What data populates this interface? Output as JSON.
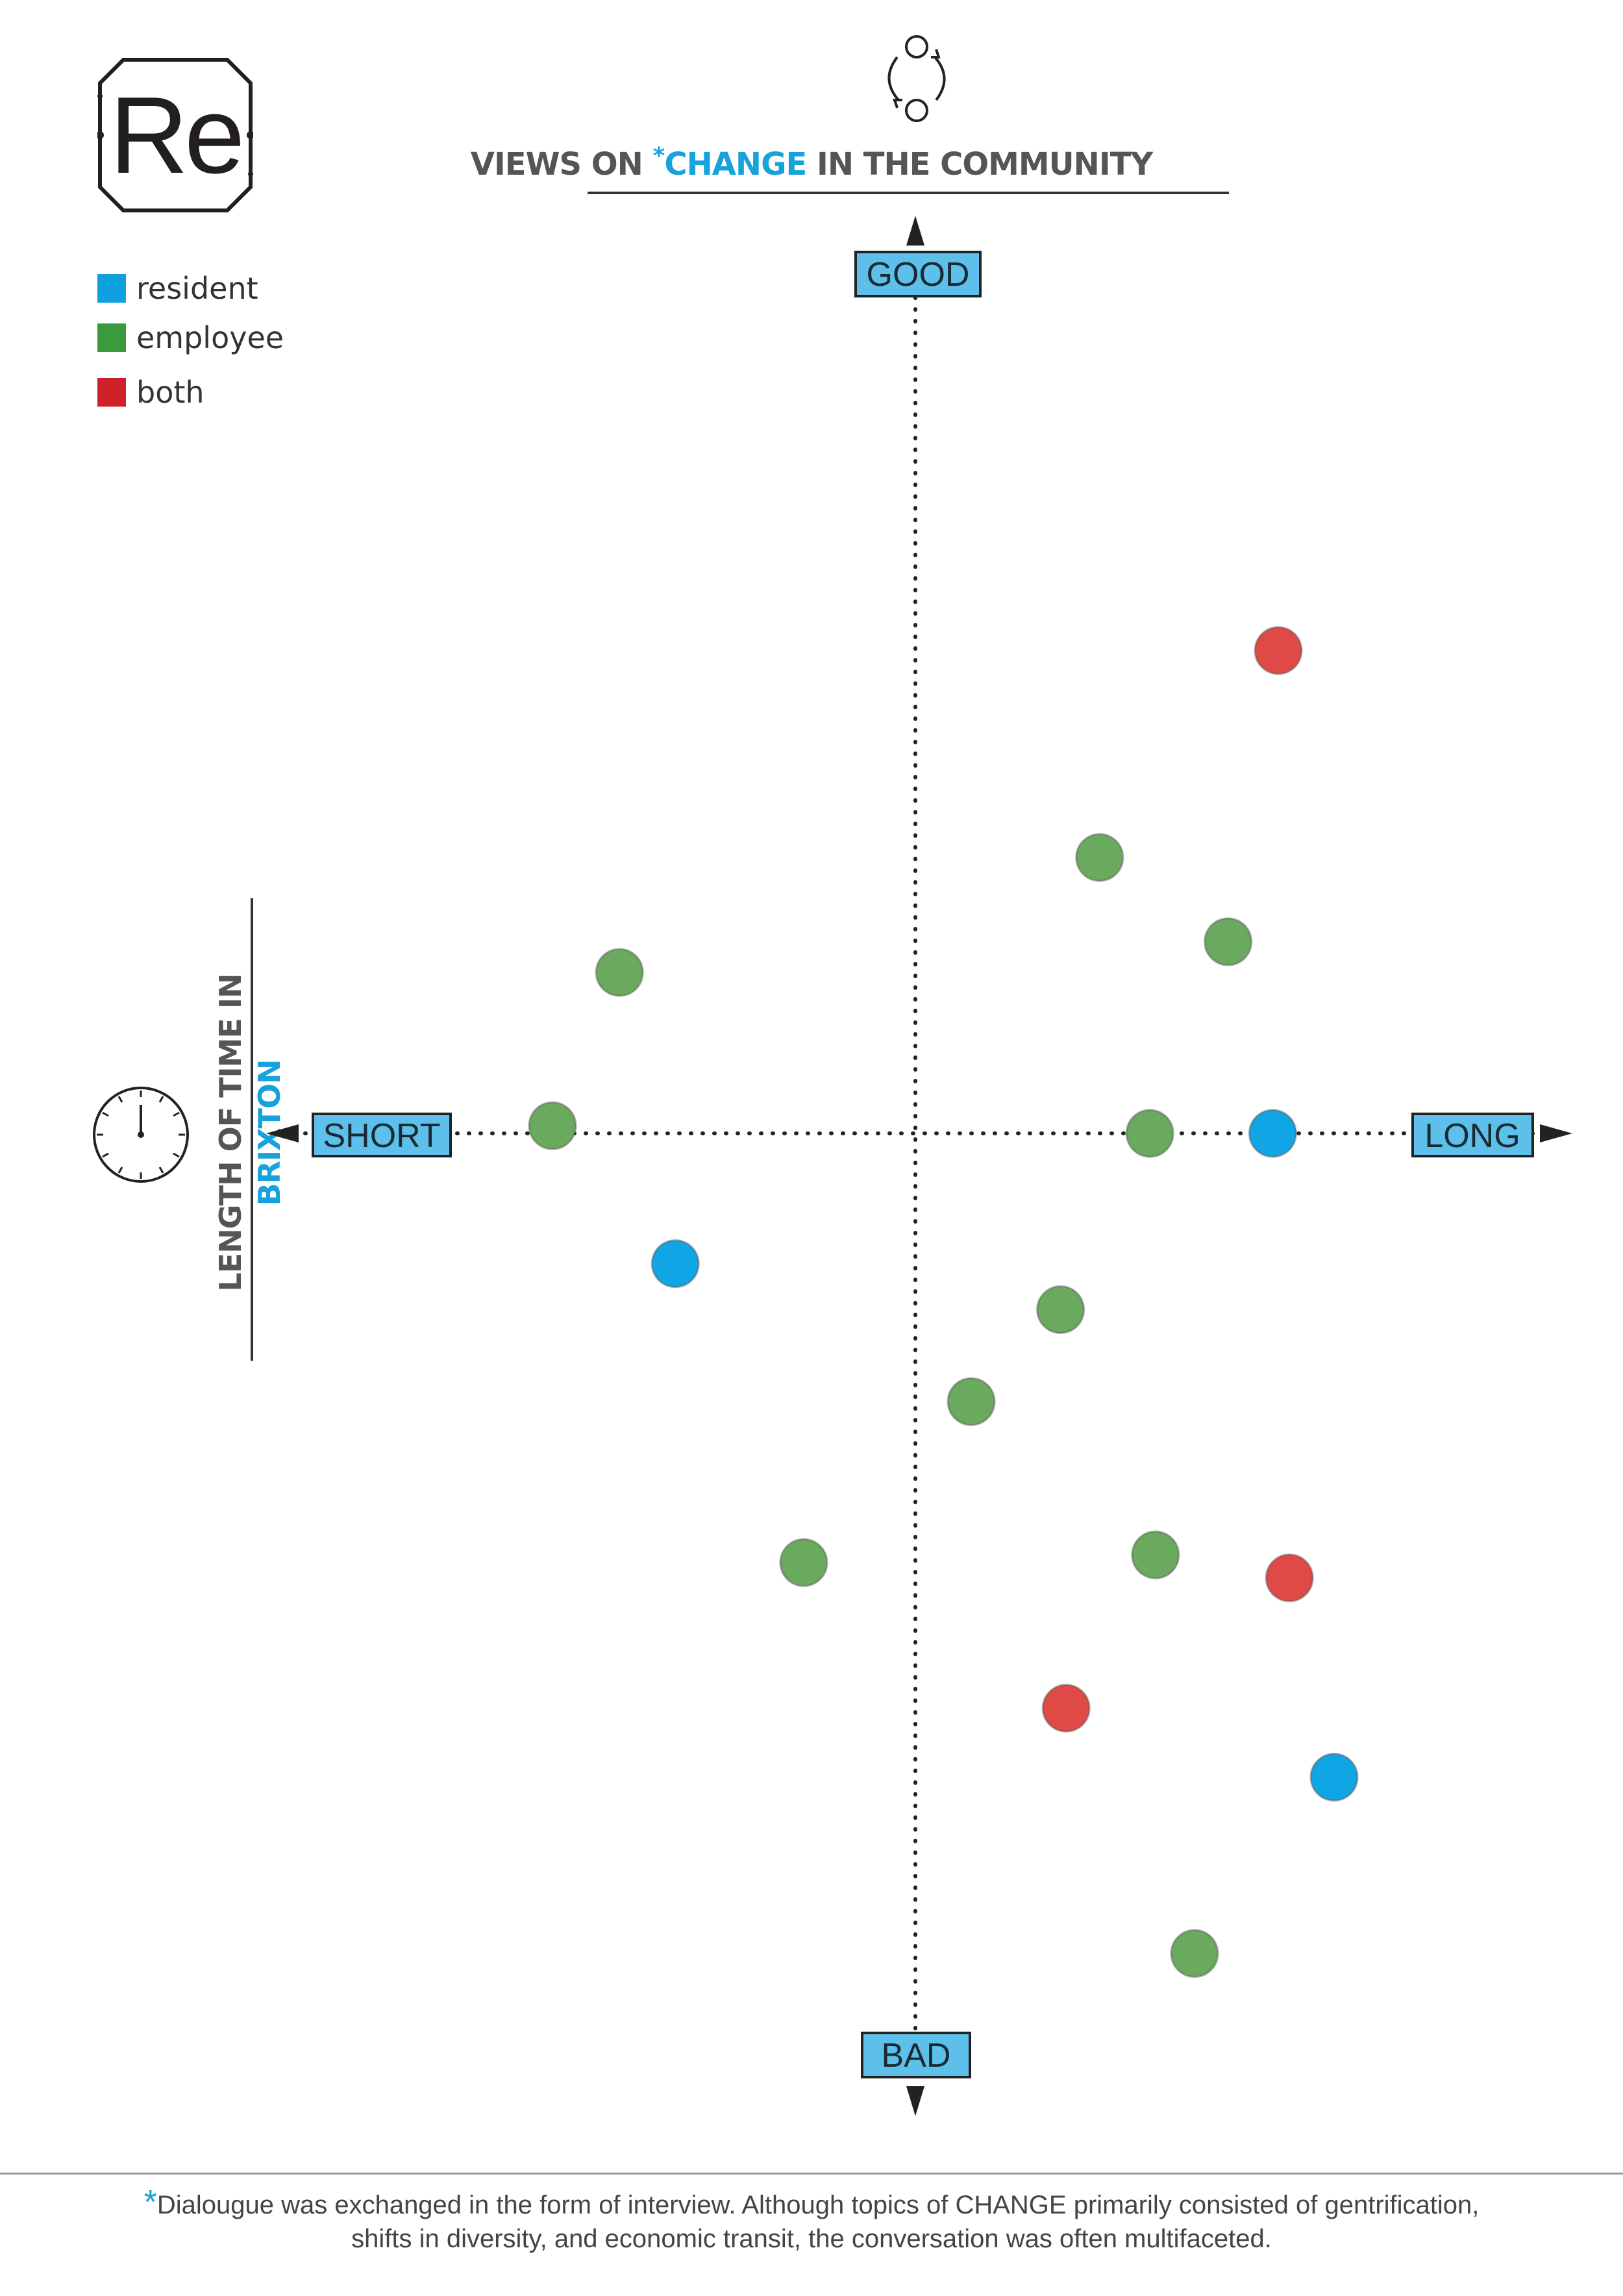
{
  "logo": {
    "text": "Re"
  },
  "header": {
    "title_before": "VIEWS ON ",
    "title_star": "*",
    "title_accent": "CHANGE",
    "title_after": " IN THE COMMUNITY",
    "icon": "cycle-icon"
  },
  "side_label": {
    "before": "LENGTH OF TIME IN ",
    "accent": "BRIXTON",
    "icon": "clock-icon"
  },
  "legend": [
    {
      "label": "resident",
      "color": "#0fa0e0"
    },
    {
      "label": "employee",
      "color": "#3a9a3e"
    },
    {
      "label": "both",
      "color": "#d0202a"
    }
  ],
  "footnote": {
    "star": "*",
    "line1": "Dialougue was exchanged in the form of interview. Although topics of CHANGE primarily consisted of gentrification,",
    "line2": "shifts in diversity, and economic transit, the conversation was often multifaceted."
  },
  "chart_data": {
    "type": "scatter",
    "x_axis": {
      "min_label": "SHORT",
      "max_label": "LONG",
      "range": [
        -100,
        100
      ]
    },
    "y_axis": {
      "min_label": "BAD",
      "max_label": "GOOD",
      "range": [
        -100,
        100
      ]
    },
    "grid": false,
    "legend_position": "top-left",
    "series": [
      {
        "name": "resident",
        "color": "#10a5e5",
        "points": [
          {
            "x": 64,
            "y": 0
          },
          {
            "x": -43,
            "y": -17
          },
          {
            "x": 75,
            "y": -84
          }
        ]
      },
      {
        "name": "employee",
        "color": "#6aaa5e",
        "points": [
          {
            "x": 33,
            "y": 36
          },
          {
            "x": 56,
            "y": 25
          },
          {
            "x": -53,
            "y": 21
          },
          {
            "x": -65,
            "y": 1
          },
          {
            "x": 42,
            "y": 0
          },
          {
            "x": 26,
            "y": -23
          },
          {
            "x": 10,
            "y": -35
          },
          {
            "x": -20,
            "y": -56
          },
          {
            "x": 43,
            "y": -55
          },
          {
            "x": 50,
            "y": -107
          }
        ]
      },
      {
        "name": "both",
        "color": "#df4a46",
        "points": [
          {
            "x": 65,
            "y": 63
          },
          {
            "x": 67,
            "y": -58
          },
          {
            "x": 27,
            "y": -75
          }
        ]
      }
    ]
  }
}
